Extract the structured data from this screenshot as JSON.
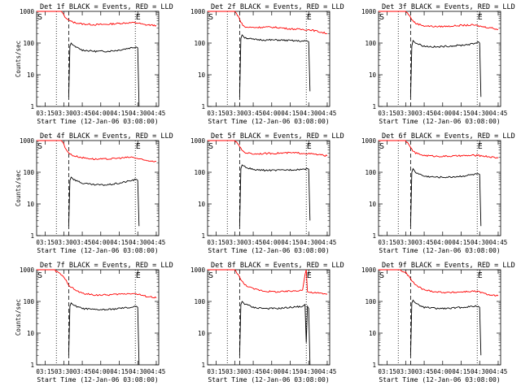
{
  "chart_data": [
    {
      "type": "line",
      "title": "Det 1f BLACK = Events, RED = LLD",
      "xlabel": "Start Time (12-Jan-06 03:08:00)",
      "ylabel": "Counts/sec",
      "ylog": true,
      "ylim": [
        1,
        1000
      ],
      "xlim": [
        "03:08",
        "04:47"
      ],
      "x_ticks": [
        "03:15",
        "03:30",
        "03:45",
        "04:00",
        "04:15",
        "04:30",
        "04:45"
      ],
      "y_ticks": [
        "1",
        "10",
        "100",
        "1000"
      ],
      "markers": [
        {
          "label": "S",
          "time": "03:08"
        },
        {
          "label": "E",
          "time": "04:31"
        }
      ],
      "dotted_lines": [
        "03:24",
        "04:28"
      ],
      "dashed_lines": [
        "03:34"
      ],
      "series": [
        {
          "color": "#ff0000",
          "x": [
            "03:08",
            "03:28",
            "03:30",
            "03:31",
            "03:33",
            "03:35",
            "03:38",
            "03:45",
            "03:55",
            "04:05",
            "04:15",
            "04:25",
            "04:30",
            "04:35",
            "04:45"
          ],
          "y": [
            1000,
            1000,
            800,
            650,
            560,
            500,
            450,
            400,
            380,
            390,
            420,
            440,
            430,
            380,
            360
          ]
        },
        {
          "color": "#000000",
          "x": [
            "03:34",
            "03:35",
            "03:36",
            "03:38",
            "03:45",
            "03:55",
            "04:05",
            "04:15",
            "04:25",
            "04:29",
            "04:30",
            "04:31"
          ],
          "y": [
            2,
            80,
            100,
            80,
            60,
            55,
            55,
            60,
            72,
            75,
            70,
            1
          ]
        }
      ]
    },
    {
      "type": "line",
      "title": "Det 2f BLACK = Events, RED = LLD",
      "xlabel": "Start Time (12-Jan-06 03:08:00)",
      "ylabel": "",
      "ylog": true,
      "ylim": [
        1,
        1000
      ],
      "xlim": [
        "03:08",
        "04:47"
      ],
      "x_ticks": [
        "03:15",
        "03:30",
        "03:45",
        "04:00",
        "04:15",
        "04:30",
        "04:45"
      ],
      "y_ticks": [
        "1",
        "10",
        "100",
        "1000"
      ],
      "markers": [
        {
          "label": "S",
          "time": "03:08"
        },
        {
          "label": "E",
          "time": "04:31"
        }
      ],
      "dotted_lines": [
        "03:24",
        "04:28"
      ],
      "dashed_lines": [
        "03:34"
      ],
      "series": [
        {
          "color": "#ff0000",
          "x": [
            "03:08",
            "03:30",
            "03:33",
            "03:35",
            "03:38",
            "03:45",
            "03:55",
            "04:05",
            "04:15",
            "04:25",
            "04:32",
            "04:40",
            "04:45"
          ],
          "y": [
            1000,
            1000,
            700,
            450,
            320,
            310,
            320,
            310,
            280,
            270,
            260,
            220,
            200
          ]
        },
        {
          "color": "#000000",
          "x": [
            "03:34",
            "03:35",
            "03:36",
            "03:38",
            "03:45",
            "03:55",
            "04:05",
            "04:15",
            "04:25",
            "04:29",
            "04:30",
            "04:31"
          ],
          "y": [
            2,
            140,
            180,
            150,
            130,
            125,
            125,
            120,
            115,
            115,
            110,
            3
          ]
        }
      ]
    },
    {
      "type": "line",
      "title": "Det 3f BLACK = Events, RED = LLD",
      "xlabel": "Start Time (12-Jan-06 03:08:00)",
      "ylabel": "",
      "ylog": true,
      "ylim": [
        1,
        1000
      ],
      "xlim": [
        "03:08",
        "04:47"
      ],
      "x_ticks": [
        "03:15",
        "03:30",
        "03:45",
        "04:00",
        "04:15",
        "04:30",
        "04:45"
      ],
      "y_ticks": [
        "1",
        "10",
        "100",
        "1000"
      ],
      "markers": [
        {
          "label": "S",
          "time": "03:08"
        },
        {
          "label": "E",
          "time": "04:31"
        }
      ],
      "dotted_lines": [
        "03:24",
        "04:28"
      ],
      "dashed_lines": [
        "03:34"
      ],
      "series": [
        {
          "color": "#ff0000",
          "x": [
            "03:08",
            "03:30",
            "03:33",
            "03:35",
            "03:38",
            "03:45",
            "03:55",
            "04:05",
            "04:15",
            "04:25",
            "04:32",
            "04:40",
            "04:45"
          ],
          "y": [
            1000,
            1000,
            750,
            550,
            420,
            350,
            330,
            340,
            360,
            370,
            330,
            300,
            270
          ]
        },
        {
          "color": "#000000",
          "x": [
            "03:34",
            "03:35",
            "03:36",
            "03:38",
            "03:45",
            "03:55",
            "04:05",
            "04:15",
            "04:25",
            "04:29",
            "04:30",
            "04:31"
          ],
          "y": [
            2,
            80,
            120,
            100,
            80,
            75,
            80,
            85,
            95,
            110,
            100,
            2
          ]
        }
      ]
    },
    {
      "type": "line",
      "title": "Det 4f BLACK = Events, RED = LLD",
      "xlabel": "Start Time (12-Jan-06 03:08:00)",
      "ylabel": "Counts/sec",
      "ylog": true,
      "ylim": [
        1,
        1000
      ],
      "xlim": [
        "03:08",
        "04:47"
      ],
      "x_ticks": [
        "03:15",
        "03:30",
        "03:45",
        "04:00",
        "04:15",
        "04:30",
        "04:45"
      ],
      "y_ticks": [
        "1",
        "10",
        "100",
        "1000"
      ],
      "markers": [
        {
          "label": "S",
          "time": "03:08"
        },
        {
          "label": "E",
          "time": "04:31"
        }
      ],
      "dotted_lines": [
        "03:24",
        "04:28"
      ],
      "dashed_lines": [
        "03:34"
      ],
      "series": [
        {
          "color": "#ff0000",
          "x": [
            "03:08",
            "03:28",
            "03:30",
            "03:31",
            "03:33",
            "03:35",
            "03:38",
            "03:45",
            "03:55",
            "04:05",
            "04:15",
            "04:25",
            "04:30",
            "04:35",
            "04:45"
          ],
          "y": [
            1000,
            1000,
            800,
            600,
            450,
            380,
            330,
            290,
            260,
            260,
            280,
            300,
            270,
            240,
            220
          ]
        },
        {
          "color": "#000000",
          "x": [
            "03:34",
            "03:35",
            "03:36",
            "03:38",
            "03:45",
            "03:55",
            "04:05",
            "04:15",
            "04:25",
            "04:29",
            "04:30",
            "04:31"
          ],
          "y": [
            2,
            55,
            70,
            60,
            45,
            40,
            40,
            45,
            55,
            60,
            55,
            2
          ]
        }
      ]
    },
    {
      "type": "line",
      "title": "Det 5f BLACK = Events, RED = LLD",
      "xlabel": "Start Time (12-Jan-06 03:08:00)",
      "ylabel": "",
      "ylog": true,
      "ylim": [
        1,
        1000
      ],
      "xlim": [
        "03:08",
        "04:47"
      ],
      "x_ticks": [
        "03:15",
        "03:30",
        "03:45",
        "04:00",
        "04:15",
        "04:30",
        "04:45"
      ],
      "y_ticks": [
        "1",
        "10",
        "100",
        "1000"
      ],
      "markers": [
        {
          "label": "S",
          "time": "03:08"
        },
        {
          "label": "E",
          "time": "04:31"
        }
      ],
      "dotted_lines": [
        "03:24",
        "04:28"
      ],
      "dashed_lines": [
        "03:34"
      ],
      "series": [
        {
          "color": "#ff0000",
          "x": [
            "03:08",
            "03:30",
            "03:33",
            "03:35",
            "03:38",
            "03:45",
            "03:55",
            "04:05",
            "04:15",
            "04:25",
            "04:32",
            "04:40",
            "04:45"
          ],
          "y": [
            1000,
            1000,
            750,
            550,
            420,
            380,
            390,
            400,
            410,
            400,
            380,
            350,
            330
          ]
        },
        {
          "color": "#000000",
          "x": [
            "03:34",
            "03:35",
            "03:36",
            "03:38",
            "03:45",
            "03:55",
            "04:05",
            "04:15",
            "04:25",
            "04:29",
            "04:30",
            "04:31"
          ],
          "y": [
            2,
            130,
            170,
            150,
            120,
            115,
            115,
            120,
            125,
            130,
            125,
            3
          ]
        }
      ]
    },
    {
      "type": "line",
      "title": "Det 6f BLACK = Events, RED = LLD",
      "xlabel": "Start Time (12-Jan-06 03:08:00)",
      "ylabel": "",
      "ylog": true,
      "ylim": [
        1,
        1000
      ],
      "xlim": [
        "03:08",
        "04:47"
      ],
      "x_ticks": [
        "03:15",
        "03:30",
        "03:45",
        "04:00",
        "04:15",
        "04:30",
        "04:45"
      ],
      "y_ticks": [
        "1",
        "10",
        "100",
        "1000"
      ],
      "markers": [
        {
          "label": "S",
          "time": "03:08"
        },
        {
          "label": "E",
          "time": "04:31"
        }
      ],
      "dotted_lines": [
        "03:24",
        "04:28"
      ],
      "dashed_lines": [
        "03:34"
      ],
      "series": [
        {
          "color": "#ff0000",
          "x": [
            "03:08",
            "03:30",
            "03:33",
            "03:35",
            "03:38",
            "03:45",
            "03:55",
            "04:05",
            "04:15",
            "04:25",
            "04:32",
            "04:40",
            "04:45"
          ],
          "y": [
            1000,
            1000,
            700,
            520,
            400,
            340,
            320,
            320,
            330,
            340,
            330,
            300,
            280
          ]
        },
        {
          "color": "#000000",
          "x": [
            "03:34",
            "03:35",
            "03:36",
            "03:38",
            "03:45",
            "03:55",
            "04:05",
            "04:15",
            "04:25",
            "04:29",
            "04:30",
            "04:31"
          ],
          "y": [
            2,
            100,
            130,
            100,
            75,
            70,
            70,
            75,
            85,
            90,
            85,
            2
          ]
        }
      ]
    },
    {
      "type": "line",
      "title": "Det 7f BLACK = Events, RED = LLD",
      "xlabel": "Start Time (12-Jan-06 03:08:00)",
      "ylabel": "Counts/sec",
      "ylog": true,
      "ylim": [
        1,
        1000
      ],
      "xlim": [
        "03:08",
        "04:47"
      ],
      "x_ticks": [
        "03:15",
        "03:30",
        "03:45",
        "04:00",
        "04:15",
        "04:30",
        "04:45"
      ],
      "y_ticks": [
        "1",
        "10",
        "100",
        "1000"
      ],
      "markers": [
        {
          "label": "S",
          "time": "03:08"
        },
        {
          "label": "E",
          "time": "04:31"
        }
      ],
      "dotted_lines": [
        "03:24",
        "04:28"
      ],
      "dashed_lines": [
        "03:34"
      ],
      "series": [
        {
          "color": "#ff0000",
          "x": [
            "03:08",
            "03:15",
            "03:22",
            "03:28",
            "03:32",
            "03:35",
            "03:40",
            "03:45",
            "03:55",
            "04:05",
            "04:15",
            "04:25",
            "04:30",
            "04:35",
            "04:45"
          ],
          "y": [
            1000,
            1000,
            1000,
            700,
            450,
            300,
            220,
            180,
            160,
            160,
            170,
            180,
            170,
            150,
            130
          ]
        },
        {
          "color": "#000000",
          "x": [
            "03:34",
            "03:35",
            "03:36",
            "03:38",
            "03:45",
            "03:55",
            "04:05",
            "04:15",
            "04:25",
            "04:29",
            "04:30",
            "04:31"
          ],
          "y": [
            2,
            70,
            90,
            75,
            60,
            55,
            55,
            60,
            65,
            70,
            65,
            1
          ]
        }
      ]
    },
    {
      "type": "line",
      "title": "Det 8f BLACK = Events, RED = LLD",
      "xlabel": "Start Time (12-Jan-06 03:08:00)",
      "ylabel": "",
      "ylog": true,
      "ylim": [
        1,
        1000
      ],
      "xlim": [
        "03:08",
        "04:47"
      ],
      "x_ticks": [
        "03:15",
        "03:30",
        "03:45",
        "04:00",
        "04:15",
        "04:30",
        "04:45"
      ],
      "y_ticks": [
        "1",
        "10",
        "100",
        "1000"
      ],
      "markers": [
        {
          "label": "S",
          "time": "03:08"
        },
        {
          "label": "E",
          "time": "04:31"
        }
      ],
      "dotted_lines": [
        "03:24",
        "04:28"
      ],
      "dashed_lines": [
        "03:34"
      ],
      "series": [
        {
          "color": "#ff0000",
          "x": [
            "03:08",
            "03:30",
            "03:33",
            "03:35",
            "03:38",
            "03:45",
            "03:55",
            "04:05",
            "04:15",
            "04:25",
            "04:27",
            "04:28",
            "04:29",
            "04:32",
            "04:40",
            "04:45"
          ],
          "y": [
            1000,
            1000,
            700,
            480,
            340,
            250,
            210,
            200,
            210,
            230,
            700,
            1000,
            200,
            190,
            180,
            170
          ]
        },
        {
          "color": "#000000",
          "x": [
            "03:34",
            "03:35",
            "03:36",
            "03:38",
            "03:45",
            "03:55",
            "04:05",
            "04:15",
            "04:25",
            "04:27",
            "04:28",
            "04:29",
            "04:30",
            "04:31"
          ],
          "y": [
            2,
            80,
            100,
            85,
            65,
            60,
            60,
            65,
            70,
            80,
            5,
            70,
            60,
            1
          ]
        }
      ]
    },
    {
      "type": "line",
      "title": "Det 9f BLACK = Events, RED = LLD",
      "xlabel": "Start Time (12-Jan-06 03:08:00)",
      "ylabel": "",
      "ylog": true,
      "ylim": [
        1,
        1000
      ],
      "xlim": [
        "03:08",
        "04:47"
      ],
      "x_ticks": [
        "03:15",
        "03:30",
        "03:45",
        "04:00",
        "04:15",
        "04:30",
        "04:45"
      ],
      "y_ticks": [
        "1",
        "10",
        "100",
        "1000"
      ],
      "markers": [
        {
          "label": "S",
          "time": "03:08"
        },
        {
          "label": "E",
          "time": "04:31"
        }
      ],
      "dotted_lines": [
        "03:24",
        "04:28"
      ],
      "dashed_lines": [
        "03:34"
      ],
      "series": [
        {
          "color": "#ff0000",
          "x": [
            "03:08",
            "03:25",
            "03:30",
            "03:33",
            "03:35",
            "03:38",
            "03:45",
            "03:55",
            "04:05",
            "04:15",
            "04:25",
            "04:30",
            "04:35",
            "04:45"
          ],
          "y": [
            1000,
            1000,
            800,
            600,
            450,
            330,
            230,
            200,
            190,
            200,
            210,
            200,
            170,
            150
          ]
        },
        {
          "color": "#000000",
          "x": [
            "03:34",
            "03:35",
            "03:36",
            "03:38",
            "03:45",
            "03:55",
            "04:05",
            "04:15",
            "04:25",
            "04:29",
            "04:30",
            "04:31"
          ],
          "y": [
            2,
            90,
            110,
            85,
            65,
            60,
            60,
            65,
            70,
            70,
            65,
            2
          ]
        }
      ]
    }
  ]
}
